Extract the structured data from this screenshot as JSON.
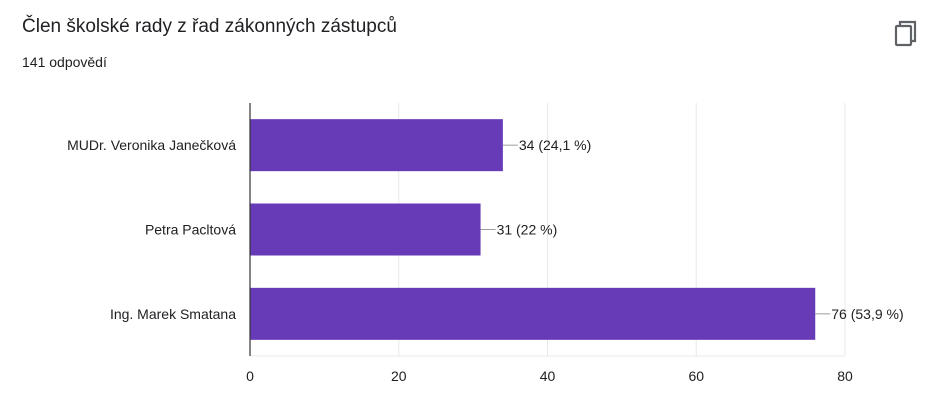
{
  "header": {
    "title": "Člen školské rady z řad zákonných zástupců",
    "responses": "141 odpovědí",
    "copy_icon": "copy-icon"
  },
  "colors": {
    "bar": "#673ab7",
    "text": "#202124",
    "grid": "#e8e8e8",
    "axis": "#333333",
    "leader": "#9e9e9e"
  },
  "chart_data": {
    "type": "bar",
    "orientation": "horizontal",
    "categories": [
      "MUDr. Veronika Janečková",
      "Petra Pacltová",
      "Ing. Marek Smatana"
    ],
    "values": [
      34,
      31,
      76
    ],
    "value_labels": [
      "34 (24,1 %)",
      "31 (22 %)",
      "76 (53,9 %)"
    ],
    "xlim": [
      0,
      80
    ],
    "xticks": [
      0,
      20,
      40,
      60,
      80
    ],
    "xtick_labels": [
      "0",
      "20",
      "40",
      "60",
      "80"
    ],
    "grid": true,
    "legend": "none"
  }
}
